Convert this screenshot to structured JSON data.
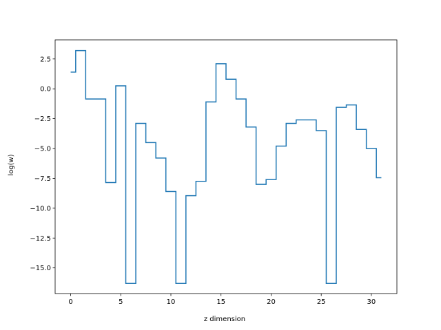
{
  "chart_data": {
    "type": "line",
    "drawstyle": "steps-mid",
    "title": "",
    "xlabel": "z dimension",
    "ylabel": "log(w)",
    "xlim": [
      -1.55,
      32.55
    ],
    "ylim": [
      -17.15,
      4.1
    ],
    "grid": false,
    "legend": "none",
    "xticks": [
      0,
      5,
      10,
      15,
      20,
      25,
      30
    ],
    "xtick_labels": [
      "0",
      "5",
      "10",
      "15",
      "20",
      "25",
      "30"
    ],
    "yticks": [
      2.5,
      0.0,
      -2.5,
      -5.0,
      -7.5,
      -10.0,
      -12.5,
      -15.0
    ],
    "ytick_labels": [
      "2.5",
      "0.0",
      "−2.5",
      "−5.0",
      "−7.5",
      "−10.0",
      "−12.5",
      "−15.0"
    ],
    "series": [
      {
        "color": "#1f77b4",
        "x": [
          0,
          1,
          2,
          3,
          4,
          5,
          6,
          7,
          8,
          9,
          10,
          11,
          12,
          13,
          14,
          15,
          16,
          17,
          18,
          19,
          20,
          21,
          22,
          23,
          24,
          25,
          26,
          27,
          28,
          29,
          30,
          31
        ],
        "y": [
          1.4,
          3.2,
          -0.85,
          -0.85,
          -7.85,
          0.25,
          -16.3,
          -2.9,
          -4.5,
          -5.8,
          -8.6,
          -16.3,
          -8.95,
          -7.75,
          -1.1,
          2.1,
          0.8,
          -0.85,
          -3.2,
          -8.0,
          -7.6,
          -4.8,
          -2.9,
          -2.6,
          -2.6,
          -3.5,
          -16.3,
          -1.55,
          -1.35,
          -3.4,
          -5.0,
          -7.45
        ]
      }
    ]
  }
}
